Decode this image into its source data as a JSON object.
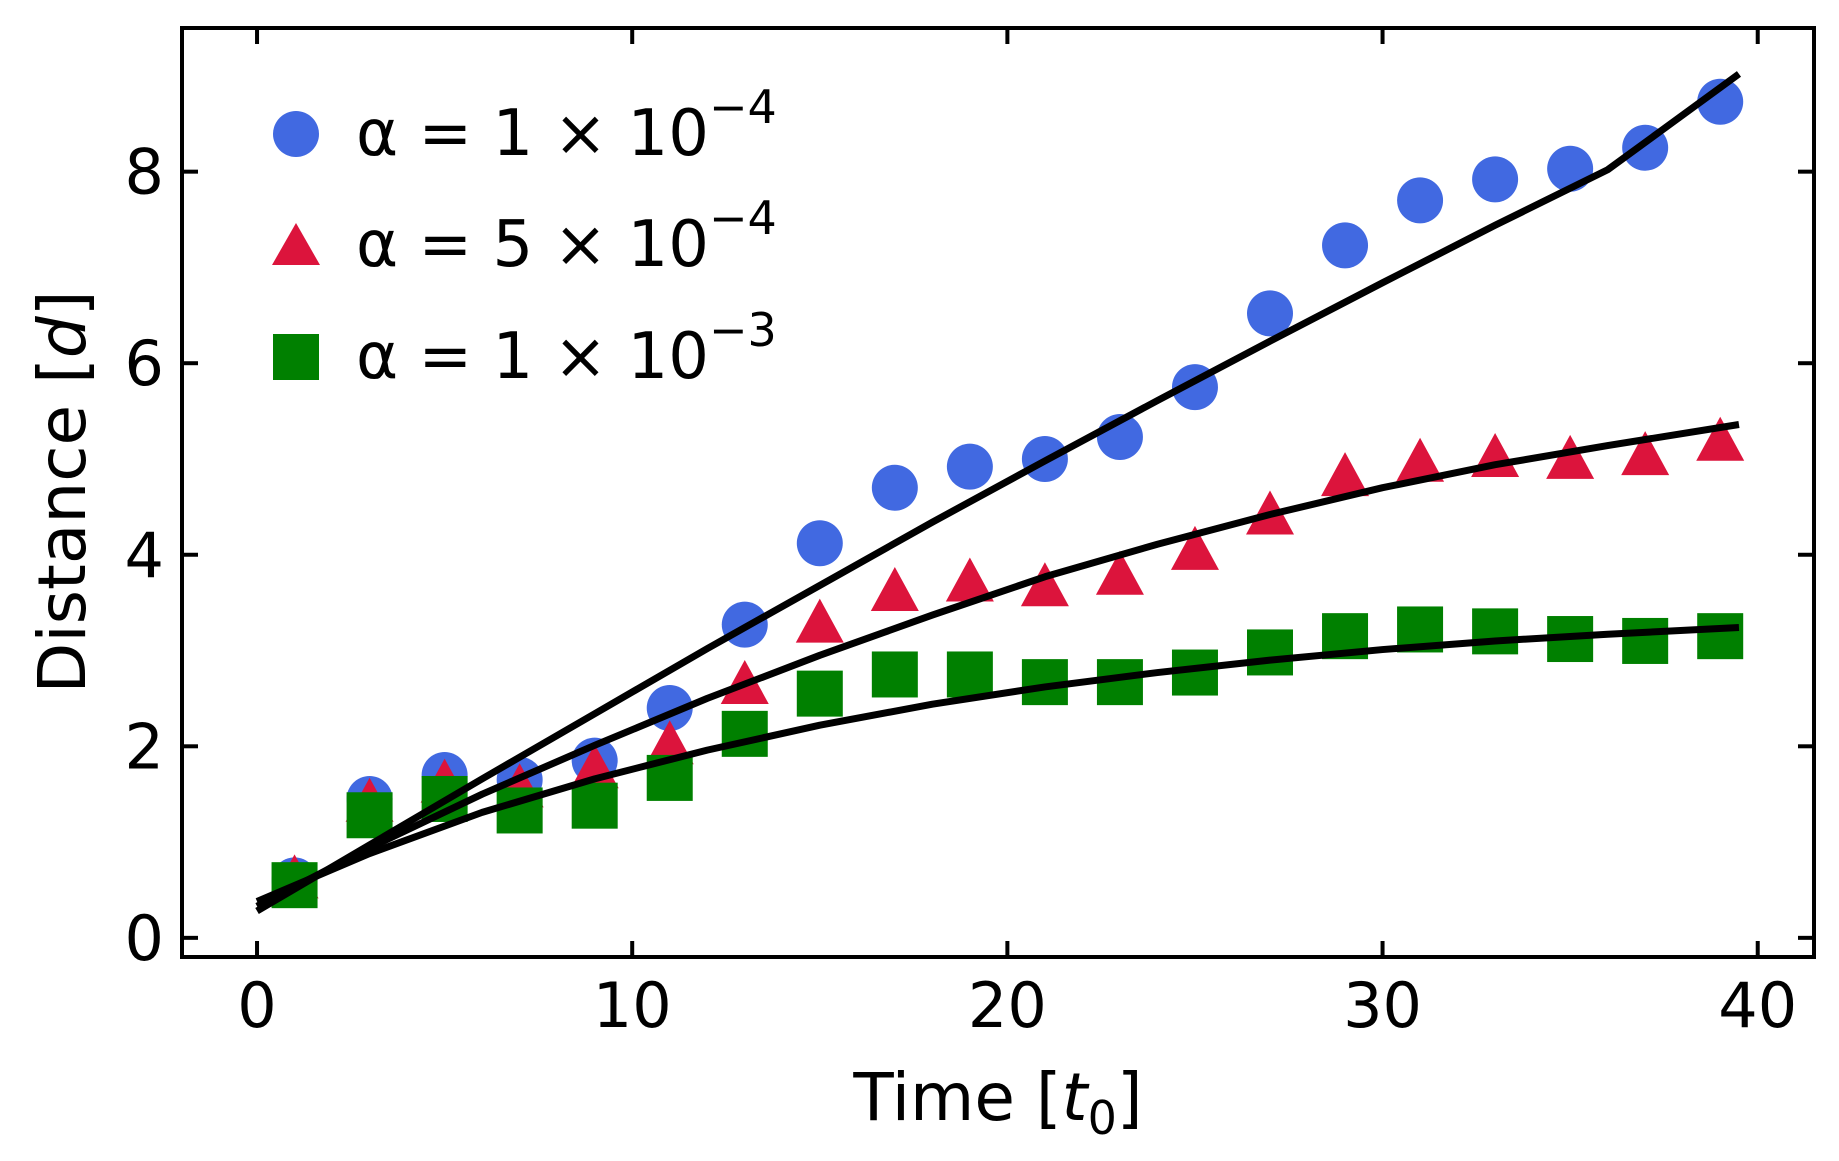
{
  "chart_data": {
    "type": "scatter",
    "title": "",
    "xlabel": "Time",
    "xlabel_unit": "t",
    "xlabel_unit_sub": "0",
    "ylabel": "Distance",
    "ylabel_unit": "d",
    "xlim": [
      -2,
      41.5
    ],
    "ylim": [
      -0.2,
      9.5
    ],
    "xticks": [
      0,
      10,
      20,
      30,
      40
    ],
    "yticks": [
      0,
      2,
      4,
      6,
      8
    ],
    "grid": false,
    "legend_position": "top-left",
    "colors": {
      "blue": "#4169e1",
      "red": "#dc143c",
      "green": "#008000",
      "fit": "#000000"
    },
    "series": [
      {
        "name": "α = 1 × 10⁻⁴",
        "legend_prefix": "α = 1 × 10",
        "legend_exp": "−4",
        "marker": "circle",
        "color": "#4169e1",
        "x": [
          1,
          3,
          5,
          7,
          9,
          11,
          13,
          15,
          17,
          19,
          21,
          23,
          25,
          27,
          29,
          31,
          33,
          35,
          37,
          39
        ],
        "y": [
          0.6,
          1.45,
          1.7,
          1.65,
          1.85,
          2.4,
          3.27,
          4.12,
          4.7,
          4.92,
          5.0,
          5.23,
          5.75,
          6.52,
          7.23,
          7.7,
          7.92,
          8.03,
          8.25,
          8.73
        ],
        "fit_x": [
          0,
          3,
          6,
          9,
          12,
          15,
          18,
          21,
          24,
          27,
          30,
          33,
          36,
          39.5
        ],
        "fit_y": [
          0.28,
          0.97,
          1.66,
          2.34,
          3.02,
          3.68,
          4.34,
          4.98,
          5.61,
          6.23,
          6.84,
          7.44,
          8.02,
          9.02
        ]
      },
      {
        "name": "α = 5 × 10⁻⁴",
        "legend_prefix": "α = 5 × 10",
        "legend_exp": "−4",
        "marker": "triangle",
        "color": "#dc143c",
        "x": [
          1,
          3,
          5,
          7,
          9,
          11,
          13,
          15,
          17,
          19,
          21,
          23,
          25,
          27,
          29,
          31,
          33,
          35,
          37,
          39
        ],
        "y": [
          0.6,
          1.4,
          1.6,
          1.55,
          1.75,
          2.0,
          2.63,
          3.27,
          3.6,
          3.7,
          3.65,
          3.77,
          4.03,
          4.4,
          4.8,
          4.95,
          5.0,
          4.98,
          5.02,
          5.17
        ],
        "fit_x": [
          0,
          3,
          6,
          9,
          12,
          15,
          18,
          21,
          24,
          27,
          30,
          33,
          36,
          39.5
        ],
        "fit_y": [
          0.33,
          0.94,
          1.5,
          2.01,
          2.5,
          2.95,
          3.37,
          3.77,
          4.11,
          4.42,
          4.7,
          4.94,
          5.14,
          5.36
        ]
      },
      {
        "name": "α = 1 × 10⁻³",
        "legend_prefix": "α = 1 × 10",
        "legend_exp": "−3",
        "marker": "square",
        "color": "#008000",
        "x": [
          1,
          3,
          5,
          7,
          9,
          11,
          13,
          15,
          17,
          19,
          21,
          23,
          25,
          27,
          29,
          31,
          33,
          35,
          37,
          39
        ],
        "y": [
          0.55,
          1.28,
          1.45,
          1.33,
          1.38,
          1.67,
          2.13,
          2.55,
          2.75,
          2.75,
          2.67,
          2.67,
          2.77,
          2.98,
          3.15,
          3.22,
          3.2,
          3.12,
          3.1,
          3.15
        ],
        "fit_x": [
          0,
          3,
          6,
          9,
          12,
          15,
          18,
          21,
          24,
          27,
          30,
          33,
          36,
          39.5
        ],
        "fit_y": [
          0.38,
          0.88,
          1.31,
          1.66,
          1.96,
          2.22,
          2.44,
          2.62,
          2.77,
          2.9,
          3.01,
          3.1,
          3.17,
          3.24
        ]
      }
    ]
  }
}
